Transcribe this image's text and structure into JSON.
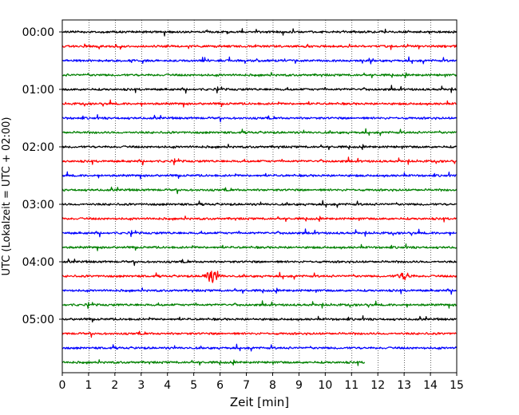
{
  "chart_data": {
    "type": "line",
    "title": "",
    "xlabel": "Zeit  [min]",
    "ylabel": "UTC (Lokalzeit = UTC + 02:00)",
    "xlim": [
      0,
      15
    ],
    "x_ticks": [
      "0",
      "1",
      "2",
      "3",
      "4",
      "5",
      "6",
      "7",
      "8",
      "9",
      "10",
      "11",
      "12",
      "13",
      "14",
      "15"
    ],
    "y_tick_labels": [
      "00:00",
      "01:00",
      "02:00",
      "03:00",
      "04:00",
      "05:00"
    ],
    "grid": "vertical dotted at each minute",
    "legend": "none",
    "series_colors": [
      "#000000",
      "#ff0000",
      "#0000ff",
      "#008000"
    ],
    "rows": [
      {
        "start": "00:00",
        "color": "#000000",
        "end_min": 15
      },
      {
        "start": "00:15",
        "color": "#ff0000",
        "end_min": 15
      },
      {
        "start": "00:30",
        "color": "#0000ff",
        "end_min": 15
      },
      {
        "start": "00:45",
        "color": "#008000",
        "end_min": 15
      },
      {
        "start": "01:00",
        "color": "#000000",
        "end_min": 15
      },
      {
        "start": "01:15",
        "color": "#ff0000",
        "end_min": 15
      },
      {
        "start": "01:30",
        "color": "#0000ff",
        "end_min": 15
      },
      {
        "start": "01:45",
        "color": "#008000",
        "end_min": 15
      },
      {
        "start": "02:00",
        "color": "#000000",
        "end_min": 15
      },
      {
        "start": "02:15",
        "color": "#ff0000",
        "end_min": 15
      },
      {
        "start": "02:30",
        "color": "#0000ff",
        "end_min": 15
      },
      {
        "start": "02:45",
        "color": "#008000",
        "end_min": 15
      },
      {
        "start": "03:00",
        "color": "#000000",
        "end_min": 15
      },
      {
        "start": "03:15",
        "color": "#ff0000",
        "end_min": 15
      },
      {
        "start": "03:30",
        "color": "#0000ff",
        "end_min": 15
      },
      {
        "start": "03:45",
        "color": "#008000",
        "end_min": 15
      },
      {
        "start": "04:00",
        "color": "#000000",
        "end_min": 15
      },
      {
        "start": "04:15",
        "color": "#ff0000",
        "end_min": 15,
        "events": [
          {
            "t": 5.7,
            "amp": 1.0
          },
          {
            "t": 13.0,
            "amp": 0.55
          }
        ]
      },
      {
        "start": "04:30",
        "color": "#0000ff",
        "end_min": 15
      },
      {
        "start": "04:45",
        "color": "#008000",
        "end_min": 15
      },
      {
        "start": "05:00",
        "color": "#000000",
        "end_min": 15
      },
      {
        "start": "05:15",
        "color": "#ff0000",
        "end_min": 15
      },
      {
        "start": "05:30",
        "color": "#0000ff",
        "end_min": 15
      },
      {
        "start": "05:45",
        "color": "#008000",
        "end_min": 11.5
      }
    ]
  }
}
